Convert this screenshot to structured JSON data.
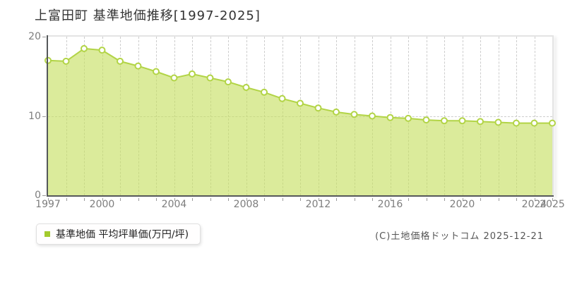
{
  "title": "上富田町 基準地価推移[1997-2025]",
  "chart_data": {
    "type": "area",
    "title": "上富田町 基準地価推移[1997-2025]",
    "series_name": "基準地価",
    "x": [
      1997,
      1998,
      1999,
      2000,
      2001,
      2002,
      2003,
      2004,
      2005,
      2006,
      2007,
      2008,
      2009,
      2010,
      2011,
      2012,
      2013,
      2014,
      2015,
      2016,
      2017,
      2018,
      2019,
      2020,
      2021,
      2022,
      2023,
      2024,
      2025
    ],
    "values": [
      17.0,
      16.9,
      18.5,
      18.3,
      16.9,
      16.3,
      15.6,
      14.8,
      15.3,
      14.8,
      14.3,
      13.6,
      13.0,
      12.2,
      11.6,
      11.0,
      10.5,
      10.2,
      10.0,
      9.8,
      9.7,
      9.5,
      9.4,
      9.4,
      9.3,
      9.2,
      9.1,
      9.1,
      9.1
    ],
    "xlabel": "",
    "ylabel": "平均坪単価(万円/坪)",
    "ylim": [
      0,
      20
    ],
    "yticks": [
      0,
      10,
      20
    ],
    "xtick_labeled_years": [
      1997,
      2000,
      2004,
      2008,
      2012,
      2016,
      2020,
      2024,
      2025
    ],
    "grid": "dashed",
    "legend_position": "bottom-left",
    "colors": {
      "line": "#b2d446",
      "fill": "rgba(197,222,94,0.62)",
      "marker_fill": "#ffffff",
      "marker_stroke": "#b2d446",
      "axis": "#55585a",
      "grid": "#cdcdcd",
      "tick_text": "#7d7d7d"
    }
  },
  "legend": {
    "label": "基準地価 平均坪単価(万円/坪)",
    "marker_color": "#a3cb2d"
  },
  "footer": {
    "copyright": "(C)土地価格ドットコム 2025-12-21"
  }
}
